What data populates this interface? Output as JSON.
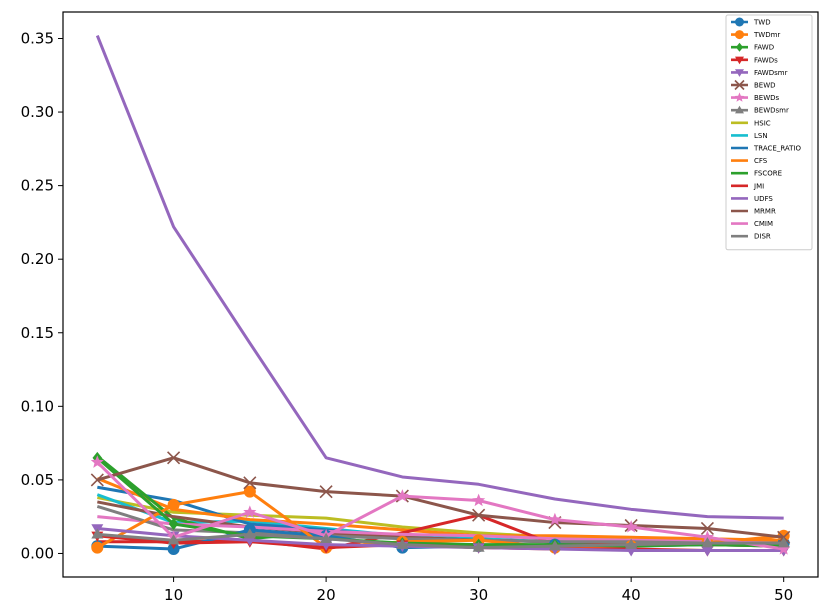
{
  "chart_data": {
    "type": "line",
    "title": "",
    "xlabel": "",
    "ylabel": "",
    "x": [
      5,
      10,
      15,
      20,
      25,
      30,
      35,
      40,
      45,
      50
    ],
    "xlim": [
      2.75,
      52.25
    ],
    "ylim": [
      -0.016,
      0.368
    ],
    "xticks": [
      10,
      20,
      30,
      40,
      50
    ],
    "yticks": [
      0.0,
      0.05,
      0.1,
      0.15,
      0.2,
      0.25,
      0.3,
      0.35
    ],
    "ytick_labels": [
      "0.00",
      "0.05",
      "0.10",
      "0.15",
      "0.20",
      "0.25",
      "0.30",
      "0.35"
    ],
    "grid": false,
    "legend_position": "top-right",
    "series": [
      {
        "name": "TWD",
        "color": "#1f77b4",
        "marker": "circle",
        "values": [
          0.005,
          0.003,
          0.016,
          0.012,
          0.004,
          0.005,
          0.006,
          0.005,
          0.006,
          0.007
        ]
      },
      {
        "name": "TWDmr",
        "color": "#ff7f0e",
        "marker": "circle",
        "values": [
          0.004,
          0.033,
          0.042,
          0.004,
          0.008,
          0.009,
          0.004,
          0.005,
          0.007,
          0.012
        ]
      },
      {
        "name": "FAWD",
        "color": "#2ca02c",
        "marker": "diamond",
        "values": [
          0.065,
          0.02,
          0.012,
          0.01,
          0.007,
          0.006,
          0.006,
          0.005,
          0.006,
          0.005
        ]
      },
      {
        "name": "FAWDs",
        "color": "#d62728",
        "marker": "triangle-down",
        "values": [
          0.012,
          0.007,
          0.008,
          0.004,
          0.006,
          0.004,
          0.003,
          0.003,
          0.002,
          0.002
        ]
      },
      {
        "name": "FAWDsmr",
        "color": "#9467bd",
        "marker": "triangle-down",
        "values": [
          0.017,
          0.012,
          0.009,
          0.006,
          0.005,
          0.004,
          0.003,
          0.002,
          0.002,
          0.002
        ]
      },
      {
        "name": "BEWD",
        "color": "#8c564b",
        "marker": "x",
        "values": [
          0.05,
          0.065,
          0.048,
          0.042,
          0.039,
          0.026,
          0.021,
          0.019,
          0.017,
          0.011
        ]
      },
      {
        "name": "BEWDs",
        "color": "#e377c2",
        "marker": "star",
        "values": [
          0.062,
          0.011,
          0.028,
          0.012,
          0.039,
          0.036,
          0.023,
          0.018,
          0.011,
          0.003
        ]
      },
      {
        "name": "BEWDsmr",
        "color": "#7f7f7f",
        "marker": "triangle-up",
        "values": [
          0.013,
          0.009,
          0.013,
          0.01,
          0.006,
          0.004,
          0.005,
          0.006,
          0.007,
          0.007
        ]
      },
      {
        "name": "HSIC",
        "color": "#bcbd22",
        "marker": "none",
        "values": [
          0.038,
          0.028,
          0.026,
          0.024,
          0.018,
          0.014,
          0.011,
          0.009,
          0.009,
          0.007
        ]
      },
      {
        "name": "LSN",
        "color": "#17becf",
        "marker": "none",
        "values": [
          0.04,
          0.021,
          0.022,
          0.017,
          0.012,
          0.01,
          0.008,
          0.007,
          0.006,
          0.005
        ]
      },
      {
        "name": "TRACE_RATIO",
        "color": "#1f77b4",
        "marker": "none",
        "values": [
          0.045,
          0.036,
          0.02,
          0.016,
          0.011,
          0.009,
          0.008,
          0.007,
          0.007,
          0.007
        ]
      },
      {
        "name": "CFS",
        "color": "#ff7f0e",
        "marker": "none",
        "values": [
          0.051,
          0.03,
          0.023,
          0.02,
          0.016,
          0.012,
          0.012,
          0.011,
          0.01,
          0.009
        ]
      },
      {
        "name": "FSCORE",
        "color": "#2ca02c",
        "marker": "none",
        "values": [
          0.066,
          0.024,
          0.01,
          0.015,
          0.011,
          0.009,
          0.008,
          0.007,
          0.007,
          0.006
        ]
      },
      {
        "name": "JMI",
        "color": "#d62728",
        "marker": "none",
        "values": [
          0.008,
          0.008,
          0.009,
          0.003,
          0.014,
          0.026,
          0.006,
          0.006,
          0.006,
          0.005
        ]
      },
      {
        "name": "UDFS",
        "color": "#9467bd",
        "marker": "none",
        "values": [
          0.352,
          0.222,
          0.143,
          0.065,
          0.052,
          0.047,
          0.037,
          0.03,
          0.025,
          0.024
        ]
      },
      {
        "name": "MRMR",
        "color": "#8c564b",
        "marker": "none",
        "values": [
          0.035,
          0.025,
          0.018,
          0.014,
          0.011,
          0.009,
          0.008,
          0.008,
          0.007,
          0.006
        ]
      },
      {
        "name": "CMIM",
        "color": "#e377c2",
        "marker": "none",
        "values": [
          0.025,
          0.02,
          0.018,
          0.015,
          0.013,
          0.012,
          0.01,
          0.009,
          0.008,
          0.007
        ]
      },
      {
        "name": "DISR",
        "color": "#7f7f7f",
        "marker": "none",
        "values": [
          0.032,
          0.016,
          0.014,
          0.012,
          0.01,
          0.009,
          0.008,
          0.008,
          0.007,
          0.007
        ]
      }
    ]
  }
}
